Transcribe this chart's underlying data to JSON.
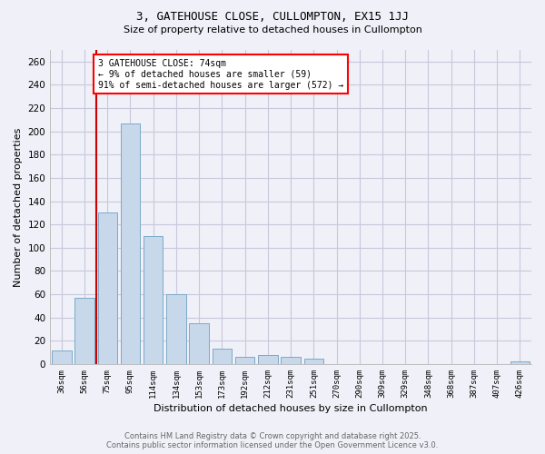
{
  "title1": "3, GATEHOUSE CLOSE, CULLOMPTON, EX15 1JJ",
  "title2": "Size of property relative to detached houses in Cullompton",
  "xlabel": "Distribution of detached houses by size in Cullompton",
  "ylabel": "Number of detached properties",
  "categories": [
    "36sqm",
    "56sqm",
    "75sqm",
    "95sqm",
    "114sqm",
    "134sqm",
    "153sqm",
    "173sqm",
    "192sqm",
    "212sqm",
    "231sqm",
    "251sqm",
    "270sqm",
    "290sqm",
    "309sqm",
    "329sqm",
    "348sqm",
    "368sqm",
    "387sqm",
    "407sqm",
    "426sqm"
  ],
  "values": [
    12,
    57,
    130,
    207,
    110,
    60,
    35,
    13,
    6,
    8,
    6,
    5,
    0,
    0,
    0,
    0,
    0,
    0,
    0,
    0,
    2
  ],
  "bar_color": "#c8d8eb",
  "bar_edge_color": "#7aaac8",
  "red_line_x": 2.5,
  "annotation_text": "3 GATEHOUSE CLOSE: 74sqm\n← 9% of detached houses are smaller (59)\n91% of semi-detached houses are larger (572) →",
  "annotation_box_color": "white",
  "annotation_box_edge_color": "red",
  "red_line_color": "#cc0000",
  "ylim": [
    0,
    270
  ],
  "yticks": [
    0,
    20,
    40,
    60,
    80,
    100,
    120,
    140,
    160,
    180,
    200,
    220,
    240,
    260
  ],
  "footer1": "Contains HM Land Registry data © Crown copyright and database right 2025.",
  "footer2": "Contains public sector information licensed under the Open Government Licence v3.0.",
  "background_color": "#f0f0f8",
  "grid_color": "#c8c8dc"
}
